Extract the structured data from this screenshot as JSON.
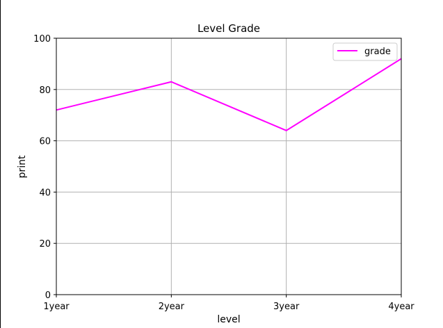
{
  "chart_data": {
    "type": "line",
    "title": "Level Grade",
    "xlabel": "level",
    "ylabel": "print",
    "categories": [
      "1year",
      "2year",
      "3year",
      "4year"
    ],
    "ylim": [
      0,
      100
    ],
    "yticks": [
      0,
      20,
      40,
      60,
      80,
      100
    ],
    "grid": true,
    "legend_position": "top-right",
    "series": [
      {
        "name": "grade",
        "values": [
          72,
          83,
          64,
          92
        ],
        "color": "#ff00ff"
      }
    ]
  }
}
